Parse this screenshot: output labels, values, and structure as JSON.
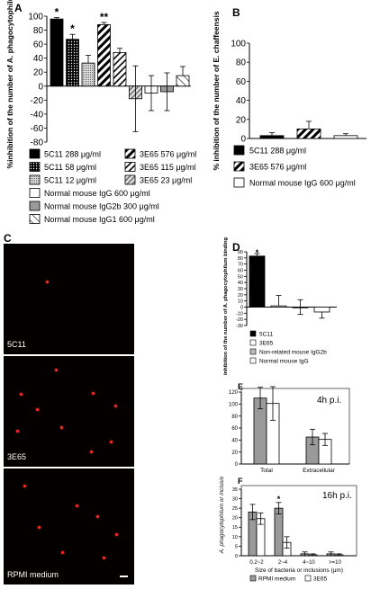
{
  "panels": {
    "A": {
      "letter": "A",
      "ylabel": "%inhibition of the number of A. phagocytophilum",
      "yticks": [
        100,
        80,
        60,
        40,
        20,
        0,
        -20,
        -40,
        -60,
        -80
      ],
      "legend": [
        "5C11 288 μg/ml",
        "3E65 576 μg/ml",
        "5C11 58 μg/ml",
        "3E65 115 μg/ml",
        "5C11 12 μg/ml",
        "3E65 23 μg/ml",
        "Normal mouse IgG 600 μg/ml",
        "Normal mouse IgG2b 300 μg/ml",
        "Normal mouse IgG1 600 μg/ml"
      ],
      "stars": [
        "*",
        "*",
        "**"
      ]
    },
    "B": {
      "letter": "B",
      "ylabel": "% inhibition of the number of E. chaffeensis",
      "yticks": [
        100,
        80,
        60,
        40,
        20,
        0
      ],
      "legend": [
        "5C11 288 μg/ml",
        "3E65 576 μg/ml",
        "Normal mouse IgG 600 μg/ml"
      ]
    },
    "C": {
      "letter": "C",
      "images": [
        "5C11",
        "3E65",
        "RPMI medium"
      ]
    },
    "D": {
      "letter": "D",
      "ylabel": "% inhibition of the number of A. phagocytophilum binding to the host cells",
      "yticks": [
        90,
        80,
        70,
        60,
        50,
        40,
        30,
        20,
        10,
        0,
        -10,
        -20,
        -30
      ],
      "legend": [
        "5C11",
        "3E65",
        "Non-related mouse IgG2b",
        "Normal mouse IgG"
      ],
      "stars": [
        "*"
      ]
    },
    "E": {
      "letter": "E",
      "ylabel": "A. phagocytophilum or inclusion/100 HL-60 cells",
      "title": "4h p.i.",
      "yticks": [
        120,
        100,
        80,
        60,
        40,
        20,
        0
      ],
      "categories": [
        "Total",
        "Extracellular"
      ]
    },
    "F": {
      "letter": "F",
      "title": "16h p.i.",
      "yticks": [
        35,
        30,
        25,
        20,
        15,
        10,
        5,
        0
      ],
      "categories": [
        "0.2~2",
        "2~4",
        "4~10",
        ">=10"
      ],
      "xlabel": "Size of bacteria or inclusions (μm)",
      "legend": [
        "RPMI medium",
        "3E65"
      ],
      "stars": [
        "*"
      ]
    }
  },
  "chart_data": [
    {
      "panel": "A",
      "type": "bar",
      "ylabel": "%inhibition of the number of A. phagocytophilum",
      "ylim": [
        -80,
        100
      ],
      "categories": [
        "5C11 288 μg/ml",
        "5C11 58 μg/ml",
        "5C11 12 μg/ml",
        "3E65 576 μg/ml",
        "3E65 115 μg/ml",
        "3E65 23 μg/ml",
        "Normal mouse IgG 600 μg/ml",
        "Normal mouse IgG2b 300 μg/ml",
        "Normal mouse IgG1 600 μg/ml"
      ],
      "values": [
        96,
        67,
        33,
        88,
        48,
        -18,
        -10,
        -8,
        15
      ],
      "errors": [
        2,
        7,
        11,
        3,
        6,
        47,
        25,
        27,
        13
      ]
    },
    {
      "panel": "B",
      "type": "bar",
      "ylabel": "% inhibition of the number of E. chaffeensis",
      "ylim": [
        0,
        100
      ],
      "categories": [
        "5C11 288 μg/ml",
        "3E65 576 μg/ml",
        "Normal mouse IgG 600 μg/ml"
      ],
      "values": [
        3,
        10,
        3
      ],
      "errors": [
        3,
        8,
        2
      ]
    },
    {
      "panel": "D",
      "type": "bar",
      "ylabel": "% inhibition of the number of A. phagocytophilum binding to the host cells",
      "ylim": [
        -30,
        90
      ],
      "categories": [
        "5C11",
        "3E65",
        "Non-related mouse IgG2b",
        "Normal mouse IgG"
      ],
      "values": [
        83,
        2,
        0,
        -8
      ],
      "errors": [
        4,
        17,
        12,
        10
      ]
    },
    {
      "panel": "E",
      "type": "bar",
      "title": "4h p.i.",
      "ylabel": "A. phagocytophilum or inclusion/100 HL-60 cells",
      "ylim": [
        0,
        120
      ],
      "categories": [
        "Total",
        "Extracellular"
      ],
      "series": [
        {
          "name": "RPMI medium",
          "values": [
            110,
            45
          ],
          "errors": [
            18,
            13
          ]
        },
        {
          "name": "3E65",
          "values": [
            101,
            41
          ],
          "errors": [
            28,
            10
          ]
        }
      ]
    },
    {
      "panel": "F",
      "type": "bar",
      "title": "16h p.i.",
      "xlabel": "Size of bacteria or inclusions (μm)",
      "ylim": [
        0,
        35
      ],
      "categories": [
        "0.2~2",
        "2~4",
        "4~10",
        ">=10"
      ],
      "series": [
        {
          "name": "RPMI medium",
          "values": [
            23,
            25,
            1,
            1
          ],
          "errors": [
            4,
            3,
            1,
            1
          ]
        },
        {
          "name": "3E65",
          "values": [
            19.5,
            7,
            0.5,
            0.5
          ],
          "errors": [
            3,
            3,
            0.5,
            0.5
          ]
        }
      ]
    }
  ]
}
